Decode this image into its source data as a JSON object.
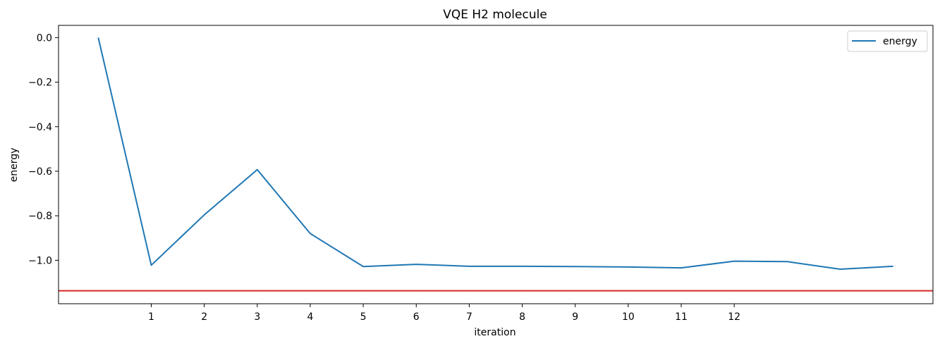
{
  "chart_data": {
    "type": "line",
    "title": "VQE H2 molecule",
    "xlabel": "iteration",
    "ylabel": "energy",
    "xlim": [
      -0.75,
      15.75
    ],
    "ylim": [
      -1.195,
      0.055
    ],
    "xticks": [
      1,
      2,
      3,
      4,
      5,
      6,
      7,
      8,
      9,
      10,
      11,
      12
    ],
    "yticks": [
      0.0,
      -0.2,
      -0.4,
      -0.6,
      -0.8,
      -1.0
    ],
    "ytick_labels": [
      "0.0",
      "−0.2",
      "−0.4",
      "−0.6",
      "−0.8",
      "−1.0"
    ],
    "series": [
      {
        "name": "energy",
        "color": "#1f77b4",
        "x": [
          0,
          1,
          2,
          3,
          4,
          5,
          6,
          7,
          8,
          9,
          10,
          11,
          12,
          13,
          14,
          15
        ],
        "values": [
          0.0,
          -1.022,
          -0.796,
          -0.593,
          -0.88,
          -1.028,
          -1.018,
          -1.027,
          -1.027,
          -1.028,
          -1.03,
          -1.034,
          -1.004,
          -1.006,
          -1.04,
          -1.027
        ]
      }
    ],
    "reference_line": {
      "y": -1.137,
      "color": "#d62728"
    },
    "legend": {
      "position": "top-right",
      "entries": [
        "energy"
      ]
    },
    "grid": false
  }
}
